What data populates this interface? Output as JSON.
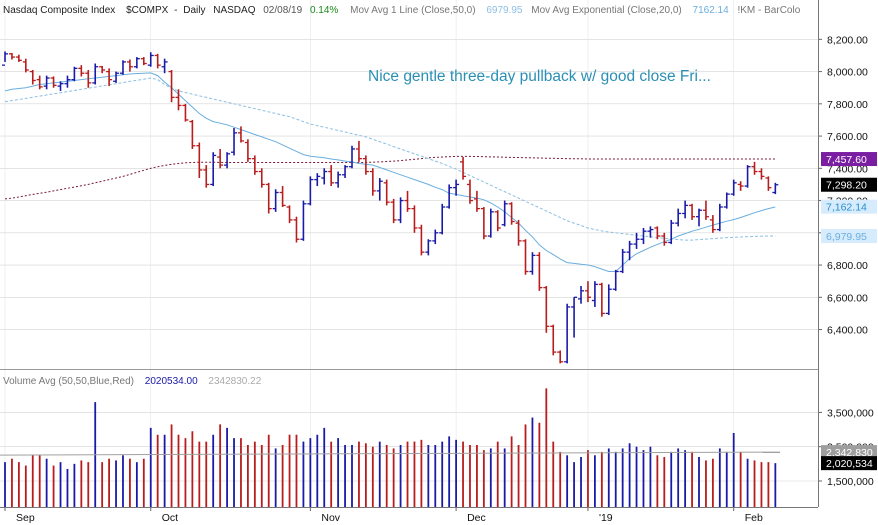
{
  "header": {
    "symbol_name": "Nasdaq Composite Index",
    "symbol": "$COMPX",
    "period": "Daily",
    "exchange": "NASDAQ",
    "date": "02/08/19",
    "change": "0.14%",
    "ma1_label": "Mov Avg 1 Line (Close,50,0)",
    "ma1_value": "6979.95",
    "ma2_label": "Mov Avg Exponential (Close,20,0)",
    "ma2_value": "7162.14",
    "extra": "!KM - BarColo"
  },
  "annotation": "Nice gentle three-day pullback w/ good close Fri...",
  "volume_header": {
    "label": "Volume Avg (50,50,Blue,Red)",
    "value1": "2020534.00",
    "value2": "2342830.22"
  },
  "price_axis": {
    "ticks": [
      "8,200.00",
      "8,000.00",
      "7,800.00",
      "7,600.00",
      "7,400.00",
      "7,200.00",
      "7,000.00",
      "6,800.00",
      "6,600.00",
      "6,400.00"
    ],
    "tick_values": [
      8200,
      8000,
      7800,
      7600,
      7400,
      7200,
      7000,
      6800,
      6600,
      6400
    ]
  },
  "price_labels": [
    {
      "text": "7,457.60",
      "value": 7457.6,
      "bg": "#7b1fa2",
      "fg": "#ffffff"
    },
    {
      "text": "7,298.20",
      "value": 7298.2,
      "bg": "#000000",
      "fg": "#ffffff"
    },
    {
      "text": "7,162.14",
      "value": 7162.14,
      "bg": "#d6ebfb",
      "fg": "#2a8fd0"
    },
    {
      "text": "6,979.95",
      "value": 6979.95,
      "bg": "#d6ebfb",
      "fg": "#6ab0e0"
    }
  ],
  "volume_axis": {
    "ticks": [
      "3,500,000",
      "2,500,000",
      "1,500,000"
    ],
    "tick_values": [
      3500000,
      2500000,
      1500000
    ]
  },
  "volume_labels": [
    {
      "text": "2,342,830",
      "value": 2342830,
      "bg": "#9e9e9e",
      "fg": "#ffffff"
    },
    {
      "text": "2,020,534",
      "value": 2020534,
      "bg": "#000000",
      "fg": "#ffffff"
    }
  ],
  "x_labels": [
    {
      "text": "Sep",
      "index": 0
    },
    {
      "text": "Oct",
      "index": 21
    },
    {
      "text": "Nov",
      "index": 44
    },
    {
      "text": "Dec",
      "index": 65
    },
    {
      "text": "'19",
      "index": 84
    },
    {
      "text": "Feb",
      "index": 105
    }
  ],
  "colors": {
    "up": "#1a1aa8",
    "down": "#b81c1c",
    "ema20": "#6aaedf",
    "sma50": "#8cbfe3",
    "long_ma": "#7a1a3a",
    "grid": "#d4d4d4",
    "annotation": "#2a8fb5",
    "volume_avg": "#a0a0a0",
    "change": "#1a8a1a"
  },
  "chart_data": {
    "type": "ohlc",
    "title": "Nasdaq Composite Index $COMPX - Daily NASDAQ",
    "ylim": [
      6180,
      8320
    ],
    "volume_ylim": [
      800000,
      4300000
    ],
    "grid": true,
    "long_ma_series": [
      7210,
      7215,
      7222,
      7230,
      7238,
      7245,
      7252,
      7260,
      7268,
      7276,
      7284,
      7292,
      7300,
      7310,
      7320,
      7330,
      7340,
      7350,
      7362,
      7375,
      7388,
      7400,
      7410,
      7418,
      7425,
      7430,
      7434,
      7436,
      7438,
      7438,
      7438,
      7437,
      7436,
      7436,
      7436,
      7436,
      7436,
      7436,
      7436,
      7436,
      7436,
      7436,
      7436,
      7436,
      7436,
      7436,
      7436,
      7436,
      7436,
      7436,
      7436,
      7436,
      7437,
      7438,
      7440,
      7442,
      7445,
      7448,
      7452,
      7456,
      7460,
      7465,
      7468,
      7470,
      7472,
      7474,
      7474,
      7474,
      7473,
      7472,
      7471,
      7470,
      7469,
      7468,
      7467,
      7466,
      7465,
      7464,
      7463,
      7462,
      7461,
      7460,
      7459,
      7459,
      7458,
      7458,
      7458,
      7458,
      7458,
      7458,
      7458,
      7458,
      7458,
      7458,
      7458,
      7458,
      7458,
      7458,
      7458,
      7458,
      7458,
      7458,
      7458,
      7458,
      7458,
      7458,
      7458,
      7458,
      7458,
      7458,
      7458,
      7458
    ],
    "sma50_series": [
      7813,
      7820,
      7827,
      7834,
      7841,
      7848,
      7855,
      7862,
      7869,
      7876,
      7883,
      7890,
      7897,
      7904,
      7911,
      7918,
      7925,
      7932,
      7939,
      7946,
      7953,
      7960,
      7950,
      7920,
      7895,
      7880,
      7870,
      7860,
      7850,
      7840,
      7830,
      7820,
      7810,
      7800,
      7790,
      7780,
      7770,
      7760,
      7750,
      7740,
      7730,
      7720,
      7705,
      7690,
      7675,
      7665,
      7655,
      7645,
      7635,
      7625,
      7615,
      7605,
      7595,
      7580,
      7565,
      7550,
      7535,
      7520,
      7505,
      7490,
      7475,
      7460,
      7445,
      7430,
      7412,
      7395,
      7375,
      7355,
      7335,
      7315,
      7295,
      7275,
      7255,
      7235,
      7215,
      7195,
      7175,
      7155,
      7135,
      7115,
      7095,
      7075,
      7060,
      7045,
      7030,
      7020,
      7012,
      7005,
      7000,
      6995,
      6990,
      6985,
      6980,
      6975,
      6970,
      6966,
      6962,
      6958,
      6955,
      6955,
      6958,
      6961,
      6964,
      6967,
      6970,
      6972,
      6974,
      6976,
      6978,
      6979,
      6980,
      6980
    ],
    "ema20_series": [
      7880,
      7890,
      7895,
      7900,
      7910,
      7920,
      7925,
      7930,
      7935,
      7940,
      7945,
      7950,
      7955,
      7960,
      7965,
      7970,
      7975,
      7980,
      7985,
      7988,
      7990,
      7992,
      7975,
      7935,
      7900,
      7860,
      7820,
      7780,
      7740,
      7710,
      7690,
      7680,
      7670,
      7655,
      7640,
      7625,
      7610,
      7595,
      7580,
      7565,
      7545,
      7525,
      7505,
      7485,
      7475,
      7470,
      7465,
      7458,
      7452,
      7445,
      7440,
      7430,
      7425,
      7420,
      7405,
      7390,
      7375,
      7360,
      7345,
      7330,
      7315,
      7300,
      7282,
      7268,
      7245,
      7238,
      7230,
      7222,
      7215,
      7205,
      7185,
      7160,
      7130,
      7095,
      7060,
      7015,
      6975,
      6925,
      6890,
      6865,
      6838,
      6815,
      6810,
      6805,
      6800,
      6790,
      6775,
      6760,
      6760,
      6800,
      6840,
      6870,
      6890,
      6910,
      6928,
      6945,
      6960,
      6980,
      6995,
      7010,
      7022,
      7035,
      7048,
      7060,
      7072,
      7082,
      7095,
      7110,
      7125,
      7138,
      7150,
      7160
    ],
    "bars": [
      {
        "o": 8040,
        "h": 8125,
        "l": 8060,
        "c": 8110
      },
      {
        "o": 8110,
        "h": 8115,
        "l": 8075,
        "c": 8090
      },
      {
        "o": 8090,
        "h": 8105,
        "l": 8060,
        "c": 8070
      },
      {
        "o": 8060,
        "h": 8080,
        "l": 7995,
        "c": 8010
      },
      {
        "o": 8000,
        "h": 8010,
        "l": 7920,
        "c": 7945
      },
      {
        "o": 7950,
        "h": 7975,
        "l": 7890,
        "c": 7905
      },
      {
        "o": 7910,
        "h": 7975,
        "l": 7890,
        "c": 7960
      },
      {
        "o": 7960,
        "h": 7970,
        "l": 7900,
        "c": 7915
      },
      {
        "o": 7910,
        "h": 7940,
        "l": 7880,
        "c": 7925
      },
      {
        "o": 7925,
        "h": 7975,
        "l": 7900,
        "c": 7950
      },
      {
        "o": 7950,
        "h": 8030,
        "l": 7940,
        "c": 8020
      },
      {
        "o": 8020,
        "h": 8040,
        "l": 7970,
        "c": 7990
      },
      {
        "o": 7990,
        "h": 8010,
        "l": 7900,
        "c": 7930
      },
      {
        "o": 7930,
        "h": 8050,
        "l": 7920,
        "c": 8030
      },
      {
        "o": 8030,
        "h": 8035,
        "l": 7990,
        "c": 8010
      },
      {
        "o": 8000,
        "h": 8020,
        "l": 7910,
        "c": 7950
      },
      {
        "o": 7940,
        "h": 8000,
        "l": 7930,
        "c": 7990
      },
      {
        "o": 7990,
        "h": 8070,
        "l": 7980,
        "c": 8060
      },
      {
        "o": 8060,
        "h": 8075,
        "l": 8000,
        "c": 8030
      },
      {
        "o": 8030,
        "h": 8090,
        "l": 8020,
        "c": 8080
      },
      {
        "o": 8080,
        "h": 8090,
        "l": 8040,
        "c": 8050
      },
      {
        "o": 8040,
        "h": 8120,
        "l": 8030,
        "c": 8100
      },
      {
        "o": 8100,
        "h": 8110,
        "l": 8020,
        "c": 8040
      },
      {
        "o": 8030,
        "h": 8080,
        "l": 7990,
        "c": 8060
      },
      {
        "o": 8000,
        "h": 8010,
        "l": 7810,
        "c": 7840
      },
      {
        "o": 7840,
        "h": 7890,
        "l": 7760,
        "c": 7790
      },
      {
        "o": 7790,
        "h": 7800,
        "l": 7690,
        "c": 7700
      },
      {
        "o": 7690,
        "h": 7700,
        "l": 7520,
        "c": 7540
      },
      {
        "o": 7540,
        "h": 7560,
        "l": 7340,
        "c": 7390
      },
      {
        "o": 7390,
        "h": 7420,
        "l": 7280,
        "c": 7300
      },
      {
        "o": 7300,
        "h": 7500,
        "l": 7290,
        "c": 7480
      },
      {
        "o": 7470,
        "h": 7520,
        "l": 7400,
        "c": 7420
      },
      {
        "o": 7420,
        "h": 7500,
        "l": 7400,
        "c": 7490
      },
      {
        "o": 7500,
        "h": 7650,
        "l": 7480,
        "c": 7620
      },
      {
        "o": 7620,
        "h": 7660,
        "l": 7560,
        "c": 7570
      },
      {
        "o": 7560,
        "h": 7580,
        "l": 7440,
        "c": 7460
      },
      {
        "o": 7460,
        "h": 7480,
        "l": 7360,
        "c": 7380
      },
      {
        "o": 7380,
        "h": 7400,
        "l": 7280,
        "c": 7300
      },
      {
        "o": 7300,
        "h": 7310,
        "l": 7120,
        "c": 7150
      },
      {
        "o": 7150,
        "h": 7270,
        "l": 7130,
        "c": 7250
      },
      {
        "o": 7250,
        "h": 7290,
        "l": 7160,
        "c": 7170
      },
      {
        "o": 7160,
        "h": 7170,
        "l": 7060,
        "c": 7080
      },
      {
        "o": 7080,
        "h": 7100,
        "l": 6940,
        "c": 6960
      },
      {
        "o": 6960,
        "h": 7200,
        "l": 6950,
        "c": 7180
      },
      {
        "o": 7180,
        "h": 7350,
        "l": 7170,
        "c": 7330
      },
      {
        "o": 7330,
        "h": 7370,
        "l": 7290,
        "c": 7350
      },
      {
        "o": 7340,
        "h": 7400,
        "l": 7300,
        "c": 7380
      },
      {
        "o": 7380,
        "h": 7420,
        "l": 7290,
        "c": 7310
      },
      {
        "o": 7310,
        "h": 7380,
        "l": 7280,
        "c": 7360
      },
      {
        "o": 7360,
        "h": 7420,
        "l": 7340,
        "c": 7410
      },
      {
        "o": 7410,
        "h": 7540,
        "l": 7400,
        "c": 7520
      },
      {
        "o": 7520,
        "h": 7570,
        "l": 7440,
        "c": 7460
      },
      {
        "o": 7460,
        "h": 7480,
        "l": 7360,
        "c": 7380
      },
      {
        "o": 7380,
        "h": 7400,
        "l": 7230,
        "c": 7260
      },
      {
        "o": 7260,
        "h": 7340,
        "l": 7200,
        "c": 7320
      },
      {
        "o": 7310,
        "h": 7330,
        "l": 7170,
        "c": 7190
      },
      {
        "o": 7190,
        "h": 7210,
        "l": 7060,
        "c": 7080
      },
      {
        "o": 7080,
        "h": 7220,
        "l": 7060,
        "c": 7200
      },
      {
        "o": 7200,
        "h": 7260,
        "l": 7130,
        "c": 7150
      },
      {
        "o": 7150,
        "h": 7170,
        "l": 7000,
        "c": 7030
      },
      {
        "o": 7030,
        "h": 7050,
        "l": 6860,
        "c": 6880
      },
      {
        "o": 6880,
        "h": 6960,
        "l": 6860,
        "c": 6950
      },
      {
        "o": 6950,
        "h": 7020,
        "l": 6930,
        "c": 7000
      },
      {
        "o": 7000,
        "h": 7180,
        "l": 6990,
        "c": 7160
      },
      {
        "o": 7160,
        "h": 7300,
        "l": 7150,
        "c": 7280
      },
      {
        "o": 7280,
        "h": 7330,
        "l": 7230,
        "c": 7300
      },
      {
        "o": 7440,
        "h": 7470,
        "l": 7330,
        "c": 7350
      },
      {
        "o": 7300,
        "h": 7330,
        "l": 7180,
        "c": 7200
      },
      {
        "o": 7210,
        "h": 7260,
        "l": 7130,
        "c": 7150
      },
      {
        "o": 7150,
        "h": 7160,
        "l": 6960,
        "c": 6980
      },
      {
        "o": 6980,
        "h": 7150,
        "l": 6970,
        "c": 7130
      },
      {
        "o": 7130,
        "h": 7140,
        "l": 7010,
        "c": 7030
      },
      {
        "o": 7050,
        "h": 7200,
        "l": 7040,
        "c": 7180
      },
      {
        "o": 7180,
        "h": 7190,
        "l": 7050,
        "c": 7070
      },
      {
        "o": 7060,
        "h": 7080,
        "l": 6920,
        "c": 6950
      },
      {
        "o": 6950,
        "h": 6960,
        "l": 6740,
        "c": 6760
      },
      {
        "o": 6760,
        "h": 6880,
        "l": 6740,
        "c": 6860
      },
      {
        "o": 6860,
        "h": 6880,
        "l": 6640,
        "c": 6660
      },
      {
        "o": 6660,
        "h": 6670,
        "l": 6380,
        "c": 6420
      },
      {
        "o": 6420,
        "h": 6430,
        "l": 6240,
        "c": 6260
      },
      {
        "o": 6260,
        "h": 6270,
        "l": 6190,
        "c": 6200
      },
      {
        "o": 6200,
        "h": 6560,
        "l": 6190,
        "c": 6540
      },
      {
        "o": 6540,
        "h": 6600,
        "l": 6350,
        "c": 6600
      },
      {
        "o": 6590,
        "h": 6670,
        "l": 6560,
        "c": 6640
      },
      {
        "o": 6640,
        "h": 6700,
        "l": 6570,
        "c": 6600
      },
      {
        "o": 6580,
        "h": 6700,
        "l": 6540,
        "c": 6680
      },
      {
        "o": 6680,
        "h": 6690,
        "l": 6480,
        "c": 6500
      },
      {
        "o": 6500,
        "h": 6680,
        "l": 6490,
        "c": 6650
      },
      {
        "o": 6650,
        "h": 6770,
        "l": 6640,
        "c": 6760
      },
      {
        "o": 6760,
        "h": 6900,
        "l": 6750,
        "c": 6880
      },
      {
        "o": 6880,
        "h": 6950,
        "l": 6830,
        "c": 6930
      },
      {
        "o": 6930,
        "h": 7000,
        "l": 6900,
        "c": 6960
      },
      {
        "o": 6960,
        "h": 7030,
        "l": 6930,
        "c": 7010
      },
      {
        "o": 7010,
        "h": 7040,
        "l": 6970,
        "c": 7020
      },
      {
        "o": 7030,
        "h": 7040,
        "l": 6960,
        "c": 6980
      },
      {
        "o": 6980,
        "h": 7000,
        "l": 6920,
        "c": 6940
      },
      {
        "o": 6940,
        "h": 7080,
        "l": 6930,
        "c": 7060
      },
      {
        "o": 7060,
        "h": 7150,
        "l": 7040,
        "c": 7120
      },
      {
        "o": 7120,
        "h": 7200,
        "l": 7090,
        "c": 7170
      },
      {
        "o": 7170,
        "h": 7180,
        "l": 7080,
        "c": 7100
      },
      {
        "o": 7100,
        "h": 7150,
        "l": 7040,
        "c": 7140
      },
      {
        "o": 7140,
        "h": 7200,
        "l": 7080,
        "c": 7100
      },
      {
        "o": 7080,
        "h": 7110,
        "l": 7000,
        "c": 7020
      },
      {
        "o": 7020,
        "h": 7180,
        "l": 7010,
        "c": 7160
      },
      {
        "o": 7160,
        "h": 7250,
        "l": 7150,
        "c": 7240
      },
      {
        "o": 7240,
        "h": 7330,
        "l": 7230,
        "c": 7310
      },
      {
        "o": 7300,
        "h": 7320,
        "l": 7260,
        "c": 7290
      },
      {
        "o": 7290,
        "h": 7420,
        "l": 7280,
        "c": 7410
      },
      {
        "o": 7410,
        "h": 7440,
        "l": 7360,
        "c": 7380
      },
      {
        "o": 7380,
        "h": 7400,
        "l": 7330,
        "c": 7350
      },
      {
        "o": 7340,
        "h": 7350,
        "l": 7260,
        "c": 7280
      },
      {
        "o": 7250,
        "h": 7310,
        "l": 7240,
        "c": 7298.2
      }
    ],
    "volume": [
      2050000,
      2150000,
      2050000,
      1950000,
      2250000,
      2250000,
      2150000,
      1950000,
      2050000,
      1850000,
      2000000,
      2100000,
      2050000,
      3800000,
      2050000,
      2150000,
      2100000,
      2250000,
      2150000,
      2050000,
      2150000,
      3050000,
      2850000,
      2850000,
      3150000,
      2850000,
      2750000,
      2950000,
      2650000,
      2650000,
      2850000,
      3150000,
      3050000,
      2750000,
      2750000,
      2550000,
      2650000,
      2550000,
      2850000,
      2450000,
      2550000,
      2850000,
      2850000,
      2650000,
      2750000,
      2850000,
      3050000,
      2650000,
      2750000,
      2550000,
      2550000,
      2650000,
      2600000,
      2500000,
      2650000,
      2550000,
      2450000,
      2550000,
      2650000,
      2650000,
      2700000,
      2550000,
      2550000,
      2650000,
      2800000,
      2700000,
      2650000,
      2550000,
      2550000,
      2400000,
      2450000,
      2650000,
      2450000,
      2800000,
      2550000,
      3150000,
      3350000,
      3200000,
      4200000,
      2650000,
      2350000,
      2250000,
      2050000,
      2200000,
      2400000,
      2250000,
      2350000,
      2450000,
      2350000,
      2450000,
      2600000,
      2500000,
      2400000,
      2500000,
      2250000,
      2200000,
      2350000,
      2450000,
      2400000,
      2350000,
      2200000,
      2100000,
      2150000,
      2450000,
      2350000,
      2900000,
      2350000,
      2150000,
      2100000,
      2050000,
      2050000,
      2020534
    ],
    "volume_avg": 2342830
  }
}
